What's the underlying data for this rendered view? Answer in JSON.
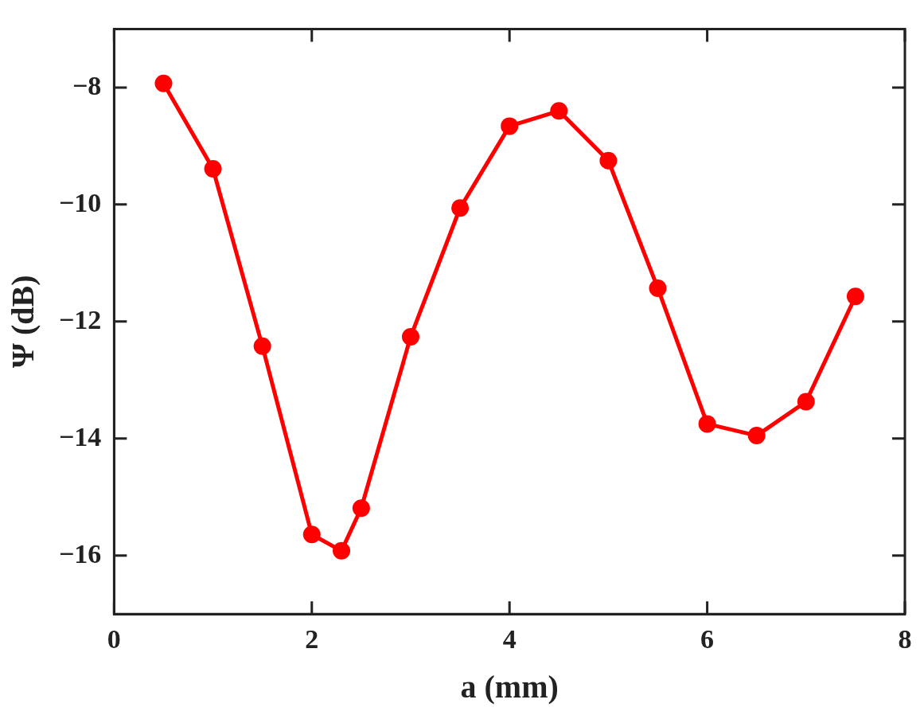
{
  "chart_data": {
    "type": "line",
    "xlabel": "a (mm)",
    "ylabel": "Ψ (dB)",
    "x": [
      0.5,
      1,
      1.5,
      2,
      2.3,
      2.5,
      3,
      3.5,
      4,
      4.5,
      5,
      5.5,
      6,
      6.5,
      7,
      7.5
    ],
    "series": [
      {
        "color": "#ff0000",
        "values": [
          -7.93,
          -9.39,
          -12.42,
          -15.64,
          -15.92,
          -15.19,
          -12.26,
          -10.06,
          -8.66,
          -8.4,
          -9.25,
          -11.43,
          -13.75,
          -13.95,
          -13.37,
          -11.57
        ]
      }
    ],
    "xlim": [
      0,
      8
    ],
    "xticks": [
      0,
      2,
      4,
      6,
      8
    ],
    "ylim": [
      -17,
      -7
    ],
    "yticks": [
      {
        "value": -8,
        "label": "−8"
      },
      {
        "value": -10,
        "label": "−10"
      },
      {
        "value": -12,
        "label": "−12"
      },
      {
        "value": -14,
        "label": "−14"
      },
      {
        "value": -16,
        "label": "−16"
      }
    ],
    "marker": "circle",
    "line_style": "solid",
    "grid": false,
    "legend": false
  }
}
